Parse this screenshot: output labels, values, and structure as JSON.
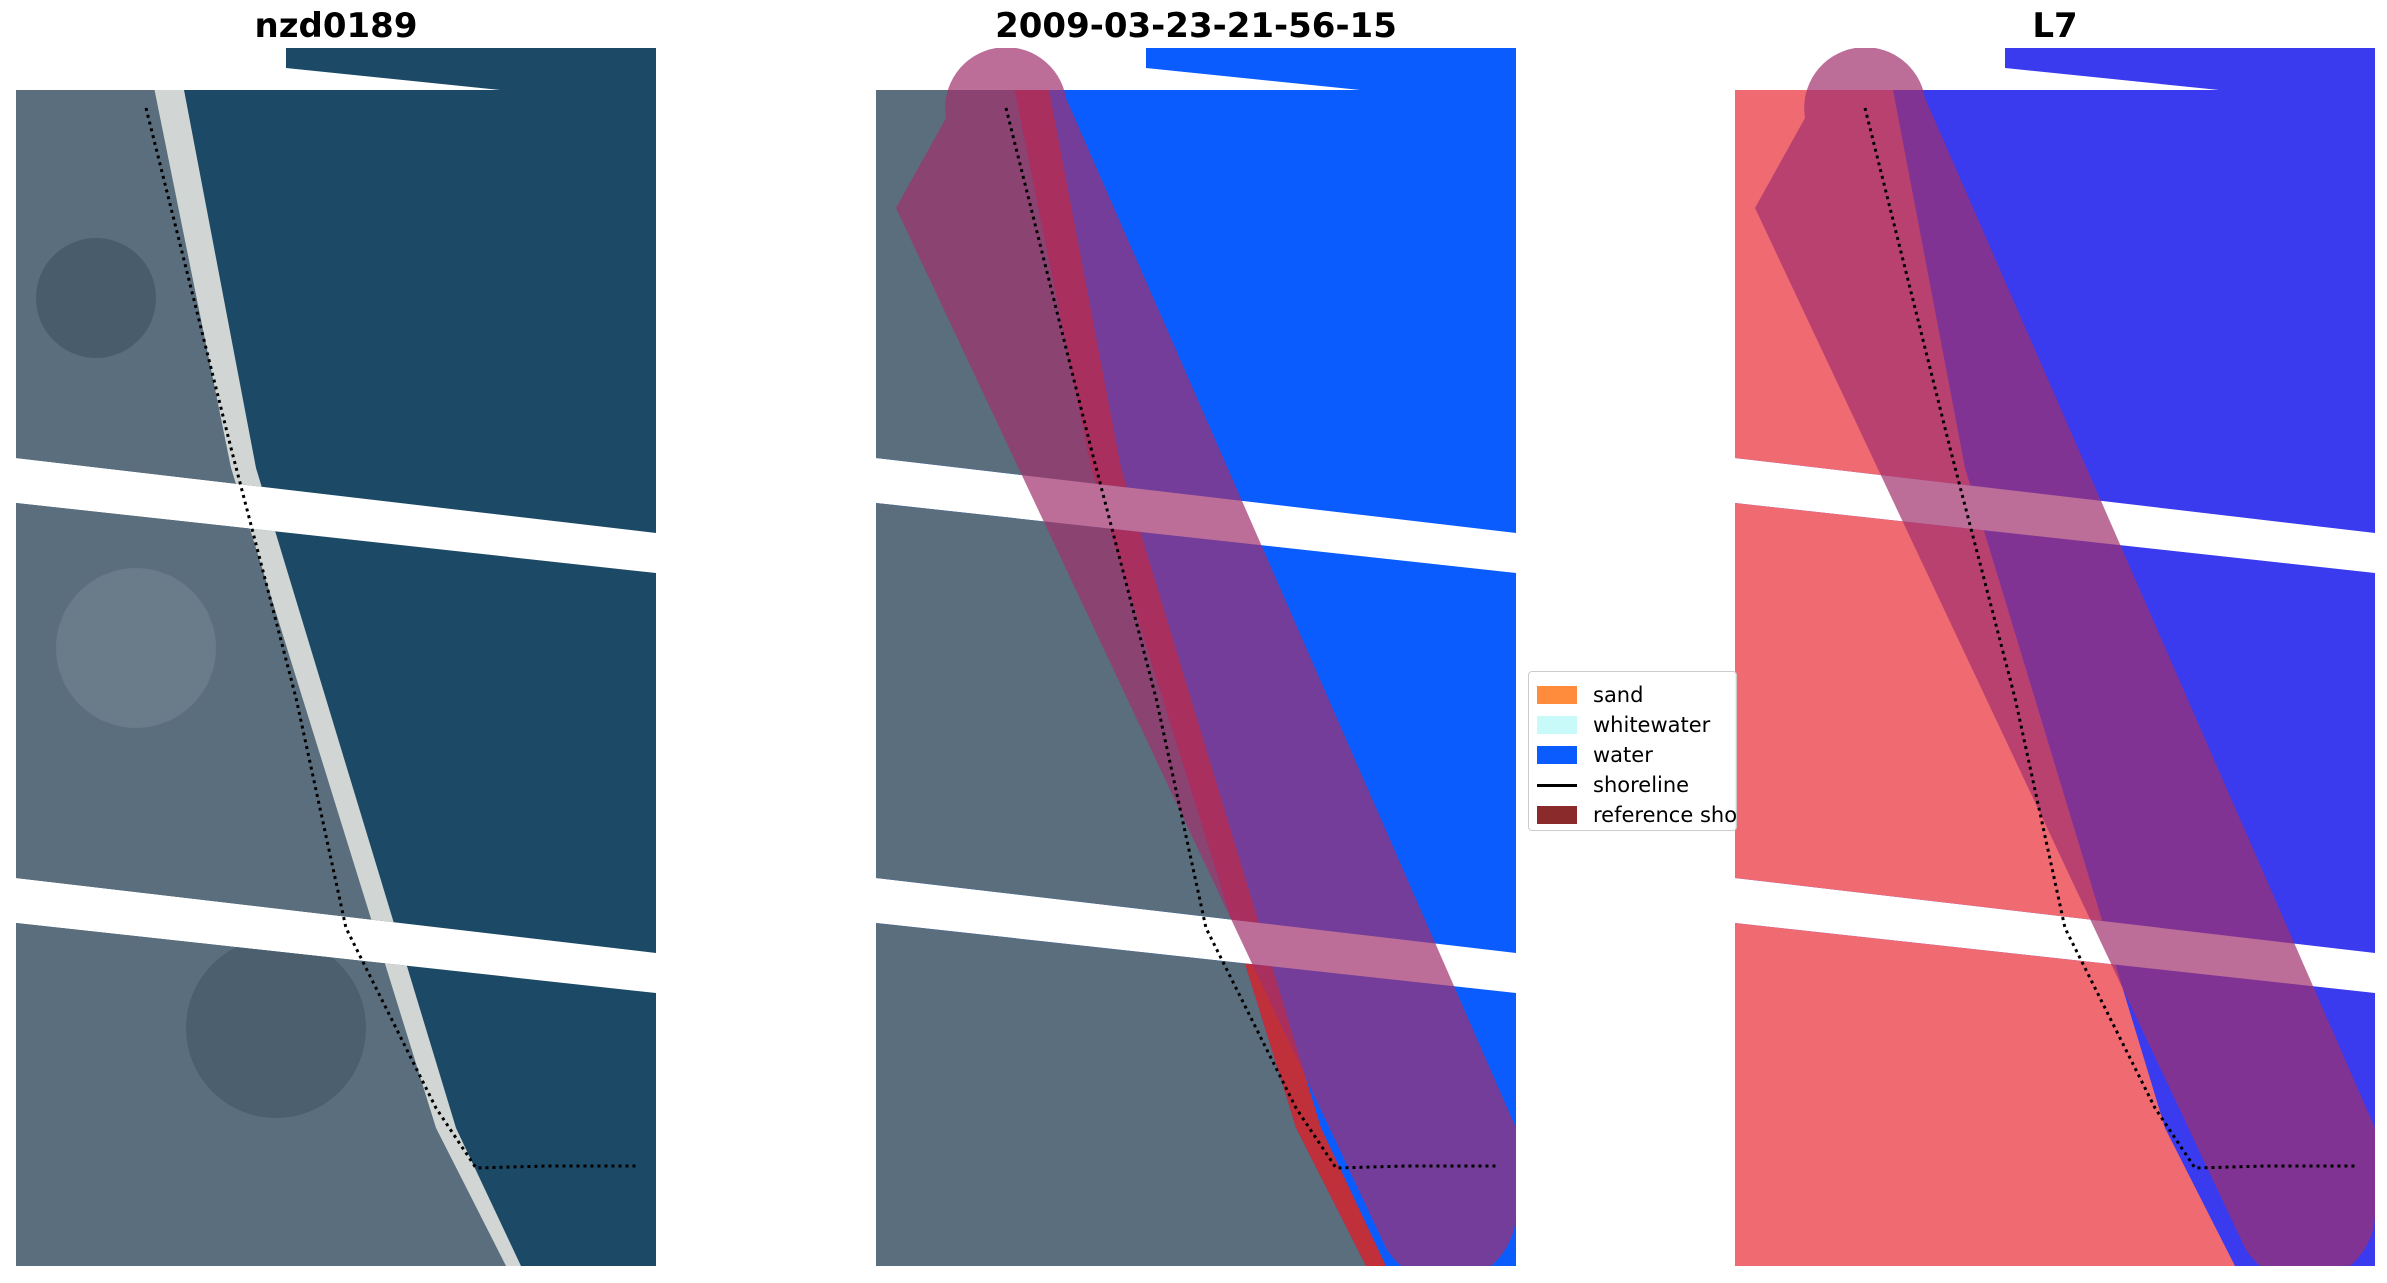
{
  "panels": [
    {
      "title": "nzd0189",
      "kind": "rgb"
    },
    {
      "title": "2009-03-23-21-56-15",
      "kind": "classified"
    },
    {
      "title": "L7",
      "kind": "index"
    }
  ],
  "legend": {
    "items": [
      {
        "label": "sand",
        "color": "#ff8c3c",
        "type": "patch"
      },
      {
        "label": "whitewater",
        "color": "#c8fafa",
        "type": "patch"
      },
      {
        "label": "water",
        "color": "#0a5cff",
        "type": "patch"
      },
      {
        "label": "shoreline",
        "color": "#000000",
        "type": "line"
      },
      {
        "label": "reference shoreline buffer",
        "color": "#8b2a2a",
        "type": "patch"
      }
    ]
  },
  "colors": {
    "land": "#5b6e7d",
    "sea": "#1c4a66",
    "beach": "#e6e6e0",
    "water_class": "#0a5cff",
    "sand_class": "#c0303a",
    "buffer": "#a0306e",
    "land_index": "#f06a72",
    "water_index": "#3a3aee"
  }
}
